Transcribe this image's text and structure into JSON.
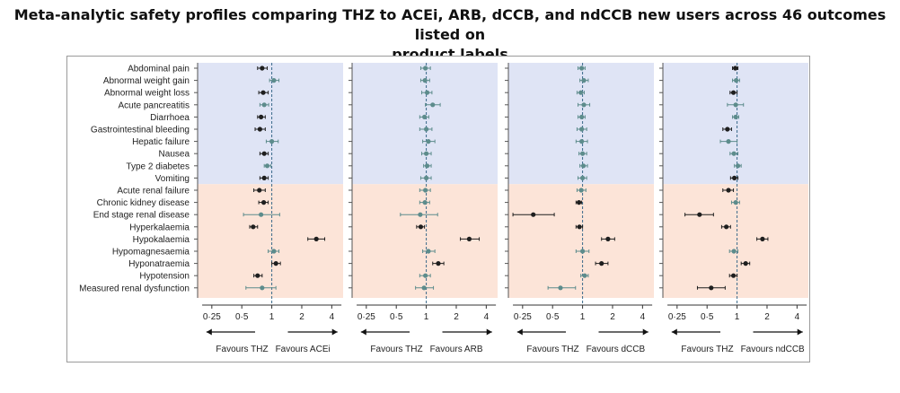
{
  "title_lines": [
    "Meta-analytic safety profiles comparing THZ to ACEi, ARB, dCCB, and ndCCB new users across 46 outcomes listed on",
    "product labels"
  ],
  "colors": {
    "top_band": "#dfe4f5",
    "bottom_band": "#fce4d8",
    "dark_point": "#1e1e1e",
    "teal_point": "#5d8c8c",
    "ref_line": "#3a6a8a"
  },
  "chart_data": {
    "type": "forest",
    "scale": "log",
    "xlim": [
      0.18,
      5.2
    ],
    "outcomes": [
      "Abdominal pain",
      "Abnormal weight gain",
      "Abnormal weight loss",
      "Acute pancreatitis",
      "Diarrhoea",
      "Gastrointestinal bleeding",
      "Hepatic failure",
      "Nausea",
      "Type 2 diabetes",
      "Vomiting",
      "Acute renal failure",
      "Chronic kidney disease",
      "End stage renal disease",
      "Hyperkalaemia",
      "Hypokalaemia",
      "Hypomagnesaemia",
      "Hyponatraemia",
      "Hypotension",
      "Measured renal dysfunction"
    ],
    "band_split_after": 10,
    "ticks": [
      {
        "label": "0·25",
        "value": 0.25
      },
      {
        "label": "0·5",
        "value": 0.5
      },
      {
        "label": "1",
        "value": 1
      },
      {
        "label": "2",
        "value": 2
      },
      {
        "label": "4",
        "value": 4
      }
    ],
    "panels": [
      {
        "comparator": "ACEi",
        "left_label": "Favours THZ",
        "right_label": "Favours ACEi",
        "est": [
          0.8,
          1.05,
          0.82,
          0.84,
          0.78,
          0.76,
          1.0,
          0.84,
          0.9,
          0.84,
          0.75,
          0.83,
          0.78,
          0.65,
          2.8,
          1.05,
          1.1,
          0.72,
          0.8
        ],
        "lo": [
          0.72,
          0.95,
          0.74,
          0.76,
          0.72,
          0.68,
          0.88,
          0.76,
          0.84,
          0.76,
          0.66,
          0.74,
          0.52,
          0.6,
          2.3,
          0.92,
          1.0,
          0.66,
          0.55
        ],
        "hi": [
          0.9,
          1.18,
          0.92,
          0.93,
          0.86,
          0.86,
          1.16,
          0.92,
          0.98,
          0.92,
          0.86,
          0.92,
          1.2,
          0.72,
          3.4,
          1.18,
          1.22,
          0.8,
          1.1
        ],
        "sig": [
          true,
          false,
          true,
          false,
          true,
          true,
          false,
          true,
          false,
          true,
          true,
          true,
          false,
          true,
          true,
          false,
          true,
          true,
          false
        ]
      },
      {
        "comparator": "ARB",
        "left_label": "Favours THZ",
        "right_label": "Favours ARB",
        "est": [
          0.98,
          0.97,
          1.02,
          1.16,
          0.96,
          1.0,
          1.05,
          1.0,
          1.02,
          1.0,
          0.98,
          0.97,
          0.87,
          0.88,
          2.7,
          1.05,
          1.32,
          0.98,
          0.95
        ],
        "lo": [
          0.88,
          0.88,
          0.9,
          0.98,
          0.86,
          0.86,
          0.92,
          0.9,
          0.94,
          0.88,
          0.86,
          0.86,
          0.55,
          0.8,
          2.2,
          0.92,
          1.16,
          0.86,
          0.78
        ],
        "hi": [
          1.1,
          1.08,
          1.14,
          1.38,
          1.06,
          1.14,
          1.22,
          1.12,
          1.12,
          1.12,
          1.1,
          1.08,
          1.3,
          0.96,
          3.4,
          1.22,
          1.5,
          1.1,
          1.18
        ],
        "sig": [
          false,
          false,
          false,
          false,
          false,
          false,
          false,
          false,
          false,
          false,
          false,
          false,
          false,
          true,
          true,
          false,
          true,
          false,
          false
        ]
      },
      {
        "comparator": "dCCB",
        "left_label": "Favours THZ",
        "right_label": "Favours dCCB",
        "est": [
          0.98,
          1.03,
          0.96,
          1.03,
          0.98,
          0.98,
          0.98,
          1.0,
          1.02,
          1.0,
          0.97,
          0.92,
          0.32,
          0.93,
          1.8,
          1.0,
          1.55,
          1.05,
          0.6
        ],
        "lo": [
          0.9,
          0.94,
          0.88,
          0.9,
          0.9,
          0.88,
          0.86,
          0.92,
          0.94,
          0.9,
          0.88,
          0.86,
          0.2,
          0.86,
          1.55,
          0.86,
          1.35,
          0.96,
          0.45
        ],
        "hi": [
          1.06,
          1.14,
          1.04,
          1.18,
          1.06,
          1.1,
          1.12,
          1.1,
          1.12,
          1.1,
          1.08,
          0.98,
          0.52,
          1.0,
          2.1,
          1.16,
          1.8,
          1.14,
          0.85
        ],
        "sig": [
          false,
          false,
          false,
          false,
          false,
          false,
          false,
          false,
          false,
          false,
          false,
          true,
          true,
          true,
          true,
          false,
          true,
          false,
          false
        ]
      },
      {
        "comparator": "ndCCB",
        "left_label": "Favours THZ",
        "right_label": "Favours ndCCB",
        "est": [
          0.96,
          0.98,
          0.92,
          0.97,
          0.97,
          0.8,
          0.82,
          0.93,
          1.02,
          0.94,
          0.82,
          0.97,
          0.42,
          0.78,
          1.8,
          0.93,
          1.22,
          0.92,
          0.55
        ],
        "lo": [
          0.9,
          0.9,
          0.85,
          0.8,
          0.9,
          0.72,
          0.68,
          0.85,
          0.94,
          0.86,
          0.72,
          0.88,
          0.3,
          0.7,
          1.58,
          0.84,
          1.1,
          0.84,
          0.4
        ],
        "hi": [
          1.02,
          1.06,
          1.0,
          1.16,
          1.04,
          0.88,
          1.0,
          1.02,
          1.1,
          1.02,
          0.92,
          1.06,
          0.58,
          0.86,
          2.04,
          1.02,
          1.34,
          1.0,
          0.76
        ],
        "sig": [
          true,
          false,
          true,
          false,
          false,
          true,
          false,
          false,
          false,
          true,
          true,
          false,
          true,
          true,
          true,
          false,
          true,
          true,
          true
        ]
      }
    ]
  }
}
